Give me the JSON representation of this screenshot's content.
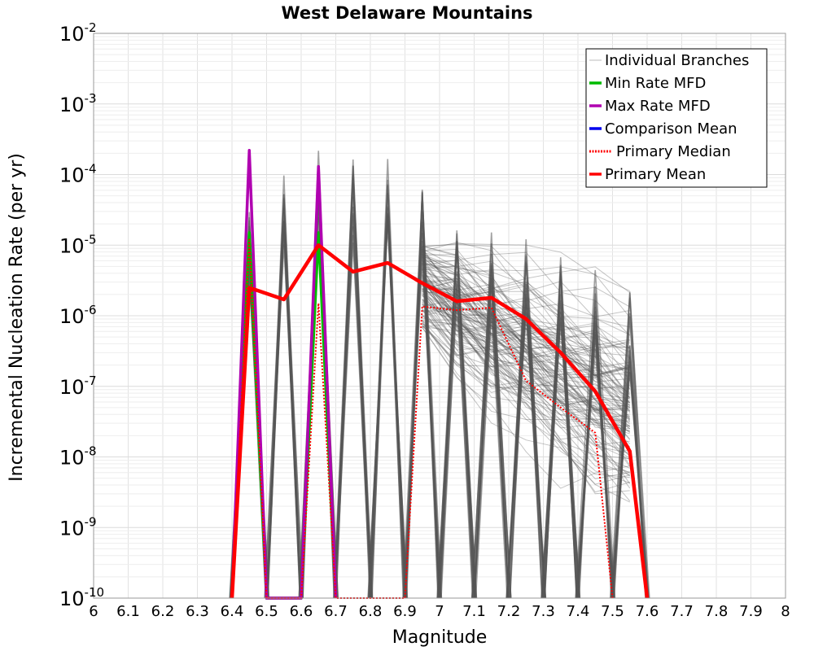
{
  "chart_data": {
    "type": "line",
    "title": "West Delaware Mountains",
    "xlabel": "Magnitude",
    "ylabel": "Incremental Nucleation Rate (per yr)",
    "xlim": [
      6,
      8
    ],
    "ylim": [
      1e-10,
      0.01
    ],
    "yscale": "log",
    "x_ticks": [
      "6",
      "6.1",
      "6.2",
      "6.3",
      "6.4",
      "6.5",
      "6.6",
      "6.7",
      "6.8",
      "6.9",
      "7",
      "7.1",
      "7.2",
      "7.3",
      "7.4",
      "7.5",
      "7.6",
      "7.7",
      "7.8",
      "7.9",
      "8"
    ],
    "y_ticks": [
      {
        "base": "10",
        "exp": "-10",
        "value": 1e-10
      },
      {
        "base": "10",
        "exp": "-9",
        "value": 1e-09
      },
      {
        "base": "10",
        "exp": "-8",
        "value": 1e-08
      },
      {
        "base": "10",
        "exp": "-7",
        "value": 1e-07
      },
      {
        "base": "10",
        "exp": "-6",
        "value": 1e-06
      },
      {
        "base": "10",
        "exp": "-5",
        "value": 1e-05
      },
      {
        "base": "10",
        "exp": "-4",
        "value": 0.0001
      },
      {
        "base": "10",
        "exp": "-3",
        "value": 0.001
      },
      {
        "base": "10",
        "exp": "-2",
        "value": 0.01
      }
    ],
    "grid": true,
    "legend_position": "top-right",
    "series": [
      {
        "name": "Individual Branches",
        "color": "#555555",
        "style": "thin",
        "description_values": "hundreds of logic-tree branch MFDs",
        "spike_x": [
          6.45,
          6.55,
          6.65,
          6.75,
          6.85,
          6.95,
          7.05,
          7.15,
          7.25,
          7.35,
          7.45,
          7.55
        ],
        "spike_max": [
          4e-05,
          0.00015,
          0.00023,
          0.00017,
          0.00017,
          8e-05,
          2.1e-05,
          1.7e-05,
          1.3e-05,
          8e-06,
          5e-06,
          2.4e-06
        ]
      },
      {
        "name": "Min Rate MFD",
        "color": "#00bb00",
        "style": "solid",
        "x": [
          6.4,
          6.45,
          6.5,
          6.6,
          6.65,
          6.7
        ],
        "y": [
          1e-10,
          1.5e-05,
          1e-10,
          1e-10,
          1.5e-05,
          1e-10
        ]
      },
      {
        "name": "Max Rate MFD",
        "color": "#b000b0",
        "style": "solid",
        "x": [
          6.4,
          6.45,
          6.5,
          6.6,
          6.65,
          6.7
        ],
        "y": [
          1e-10,
          0.00022,
          1e-10,
          1e-10,
          0.00013,
          1e-10
        ]
      },
      {
        "name": "Comparison Mean",
        "color": "#0000ee",
        "style": "solid",
        "x": [],
        "y": []
      },
      {
        "name": "Primary Median",
        "color": "#ff0000",
        "style": "dotted",
        "x": [
          6.4,
          6.45,
          6.5,
          6.6,
          6.65,
          6.7,
          6.9,
          6.95,
          7.05,
          7.15,
          7.25,
          7.35,
          7.45,
          7.5
        ],
        "y": [
          1e-10,
          1.2e-05,
          1e-10,
          1e-10,
          1.5e-06,
          1e-10,
          1e-10,
          1.35e-06,
          1.2e-06,
          1.3e-06,
          1.2e-07,
          5e-08,
          2.2e-08,
          1e-10
        ]
      },
      {
        "name": "Primary Mean",
        "color": "#ff0000",
        "style": "thick",
        "x": [
          6.4,
          6.45,
          6.55,
          6.65,
          6.75,
          6.85,
          6.95,
          7.05,
          7.15,
          7.25,
          7.35,
          7.45,
          7.55,
          7.6
        ],
        "y": [
          1e-10,
          2.5e-06,
          1.7e-06,
          1e-05,
          4.2e-06,
          5.6e-06,
          2.9e-06,
          1.6e-06,
          1.8e-06,
          9e-07,
          3e-07,
          8.5e-08,
          1.2e-08,
          1e-10
        ]
      }
    ]
  }
}
